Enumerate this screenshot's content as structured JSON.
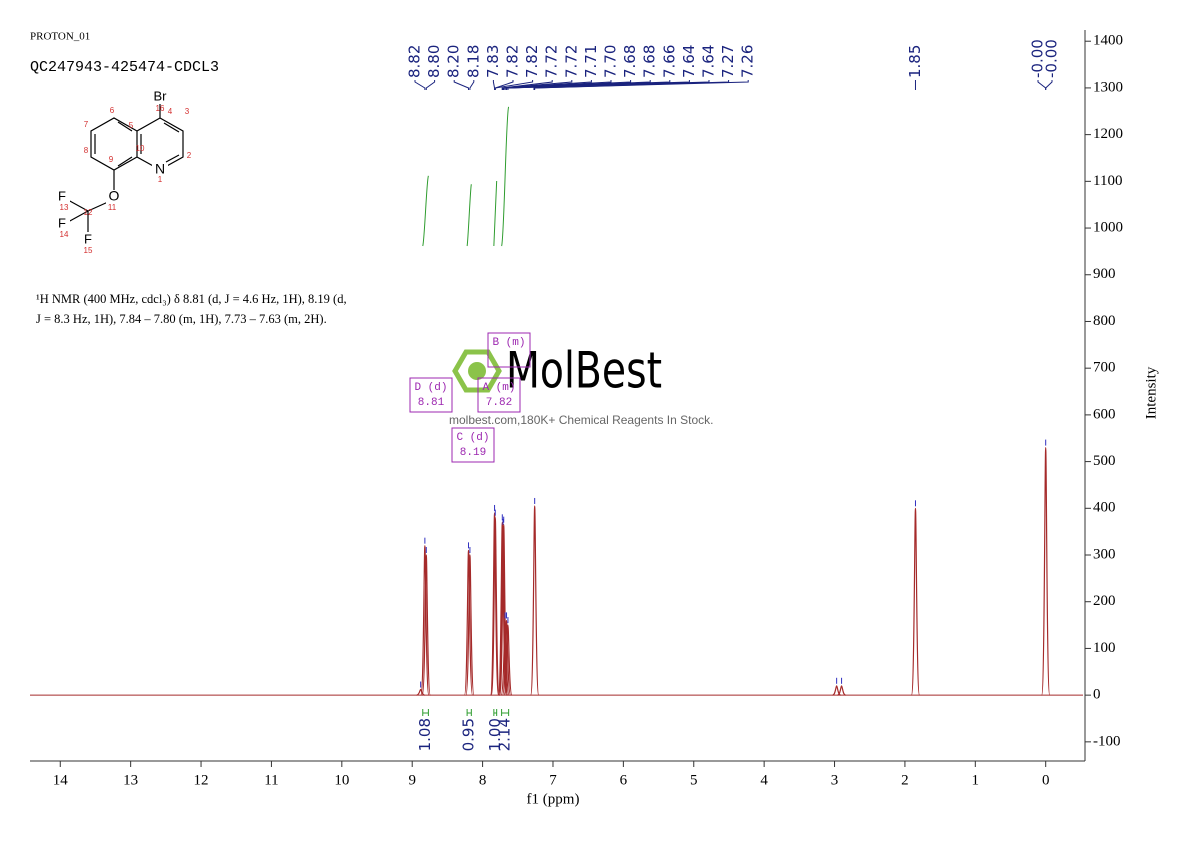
{
  "header": {
    "experiment": "PROTON_01",
    "sample": "QC247943-425474-CDCL3"
  },
  "structure": {
    "atoms": [
      "Br",
      "N",
      "O",
      "F",
      "F",
      "F"
    ],
    "numbers": [
      "16",
      "4",
      "3",
      "2",
      "1",
      "10",
      "9",
      "8",
      "7",
      "6",
      "5",
      "11",
      "12",
      "13",
      "14",
      "15"
    ]
  },
  "description": [
    "¹H NMR (400 MHz, cdcl₃) δ 8.81 (d, J = 4.6 Hz, 1H), 8.19 (d,",
    "J = 8.3 Hz, 1H), 7.84 – 7.80 (m, 1H), 7.73 – 7.63 (m, 2H)."
  ],
  "watermark": {
    "brand": "MolBest",
    "tagline": "molbest.com,180K+ Chemical Reagents In Stock."
  },
  "chart_data": {
    "type": "nmr",
    "x_label": "f1 (ppm)",
    "y_label": "Intensity",
    "xlim": [
      14.43,
      -0.53
    ],
    "xticks": [
      14,
      13,
      12,
      11,
      10,
      9,
      8,
      7,
      6,
      5,
      4,
      3,
      2,
      1,
      0
    ],
    "ylim": [
      -141,
      1424
    ],
    "yticks": [
      -100,
      0,
      100,
      200,
      300,
      400,
      500,
      600,
      700,
      800,
      900,
      1000,
      1100,
      1200,
      1300,
      1400
    ],
    "color": "#a52a2a",
    "peaks": {
      "x": [
        8.88,
        8.82,
        8.8,
        8.2,
        8.18,
        7.83,
        7.82,
        7.72,
        7.71,
        7.7,
        7.68,
        7.66,
        7.64,
        7.26,
        2.97,
        2.9,
        1.85,
        0.0
      ],
      "values": [
        12,
        320,
        300,
        310,
        300,
        390,
        380,
        370,
        360,
        365,
        160,
        160,
        150,
        405,
        20,
        20,
        400,
        530
      ]
    },
    "peak_labels": [
      {
        "value": 8.82,
        "label": "8.82"
      },
      {
        "value": 8.8,
        "label": "8.80"
      },
      {
        "value": 8.2,
        "label": "8.20"
      },
      {
        "value": 8.18,
        "label": "8.18"
      },
      {
        "value": 7.83,
        "label": "7.83"
      },
      {
        "value": 7.82,
        "label": "7.82"
      },
      {
        "value": 7.82,
        "label": "7.82"
      },
      {
        "value": 7.72,
        "label": "7.72"
      },
      {
        "value": 7.72,
        "label": "7.72"
      },
      {
        "value": 7.71,
        "label": "7.71"
      },
      {
        "value": 7.7,
        "label": "7.70"
      },
      {
        "value": 7.68,
        "label": "7.68"
      },
      {
        "value": 7.68,
        "label": "7.68"
      },
      {
        "value": 7.66,
        "label": "7.66"
      },
      {
        "value": 7.64,
        "label": "7.64"
      },
      {
        "value": 7.64,
        "label": "7.64"
      },
      {
        "value": 7.27,
        "label": "7.27"
      },
      {
        "value": 7.26,
        "label": "7.26"
      },
      {
        "value": 1.85,
        "label": "1.85"
      },
      {
        "value": 0,
        "label": "-0.00"
      },
      {
        "value": 0,
        "label": "-0.00"
      }
    ],
    "integrals": [
      {
        "range": [
          8.85,
          8.77
        ],
        "value": 1.08,
        "label": "1.08"
      },
      {
        "range": [
          8.22,
          8.16
        ],
        "value": 0.95,
        "label": "0.95"
      },
      {
        "range": [
          7.84,
          7.8
        ],
        "value": 1.0,
        "label": "1.00"
      },
      {
        "range": [
          7.73,
          7.63
        ],
        "value": 2.14,
        "label": "2.14"
      }
    ],
    "multiplets": [
      {
        "name": "D (d)",
        "shift": 8.81
      },
      {
        "name": "A (m)",
        "shift": 7.82
      },
      {
        "name": "C (d)",
        "shift": 8.19
      },
      {
        "name": "B (m)"
      }
    ]
  }
}
